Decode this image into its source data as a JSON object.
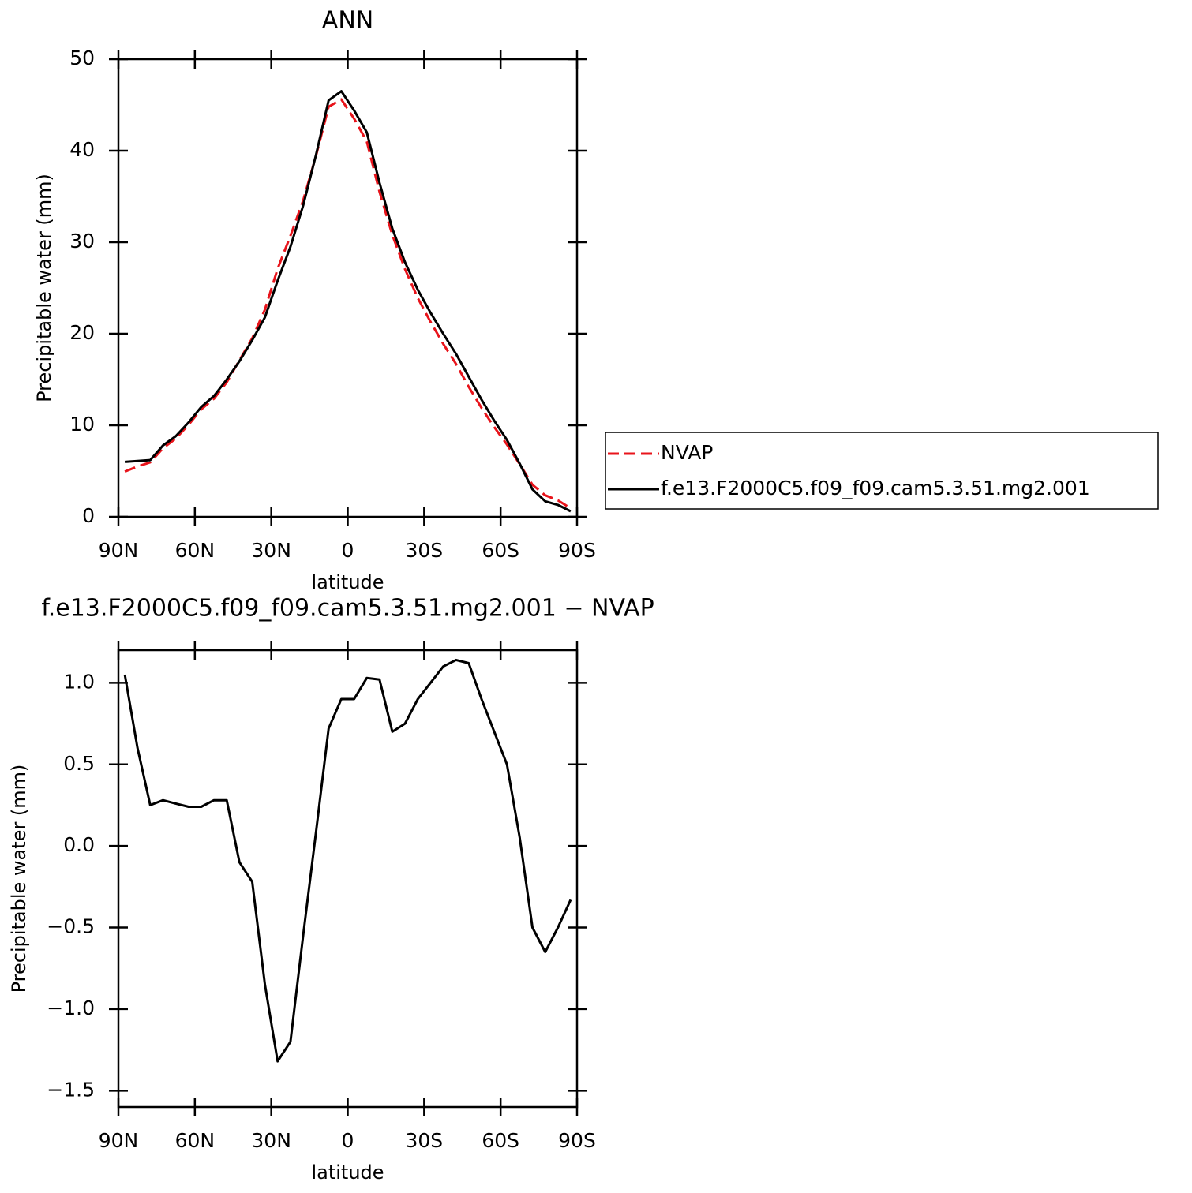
{
  "chart_data": [
    {
      "type": "line",
      "title": "ANN",
      "xlabel": "latitude",
      "ylabel": "Precipitable water (mm)",
      "x": [
        87.5,
        82.5,
        77.5,
        72.5,
        67.5,
        62.5,
        57.5,
        52.5,
        47.5,
        42.5,
        37.5,
        32.5,
        27.5,
        22.5,
        17.5,
        12.5,
        7.5,
        2.5,
        -2.5,
        -7.5,
        -12.5,
        -17.5,
        -22.5,
        -27.5,
        -32.5,
        -37.5,
        -42.5,
        -47.5,
        -52.5,
        -57.5,
        -62.5,
        -67.5,
        -72.5,
        -77.5,
        -82.5,
        -87.5
      ],
      "series": [
        {
          "name": "NVAP",
          "color": "#e8141b",
          "dash": "dashed",
          "values": [
            4.95,
            5.5,
            5.95,
            7.5,
            8.55,
            10.05,
            11.75,
            12.9,
            14.7,
            17.1,
            19.5,
            22.65,
            27.1,
            30.7,
            34.55,
            39.4,
            44.8,
            45.6,
            43.5,
            41.0,
            35.5,
            30.8,
            27.05,
            23.9,
            21.3,
            18.9,
            16.7,
            14.2,
            11.9,
            9.8,
            7.9,
            5.75,
            3.5,
            2.35,
            1.8,
            0.93
          ]
        },
        {
          "name": "f.e13.F2000C5.f09_f09.cam5.3.51.mg2.001",
          "color": "#000000",
          "dash": "solid",
          "values": [
            6.0,
            6.1,
            6.2,
            7.8,
            8.8,
            10.3,
            12.0,
            13.2,
            15.0,
            17.0,
            19.3,
            21.8,
            25.8,
            29.5,
            34.0,
            39.5,
            45.5,
            46.5,
            44.4,
            42.0,
            36.5,
            31.5,
            27.8,
            24.8,
            22.3,
            20.0,
            17.8,
            15.3,
            12.8,
            10.5,
            8.4,
            5.8,
            3.0,
            1.7,
            1.3,
            0.6
          ]
        }
      ],
      "xlim": [
        90,
        -90
      ],
      "xticks": [
        {
          "value": 90,
          "label": "90N"
        },
        {
          "value": 60,
          "label": "60N"
        },
        {
          "value": 30,
          "label": "30N"
        },
        0,
        {
          "value": -30,
          "label": "30S"
        },
        {
          "value": -60,
          "label": "60S"
        },
        {
          "value": -90,
          "label": "90S"
        }
      ],
      "ylim": [
        0,
        50
      ],
      "yticks": [
        0,
        10,
        20,
        30,
        40,
        50
      ],
      "legend": "outside-right"
    },
    {
      "type": "line",
      "title": "f.e13.F2000C5.f09_f09.cam5.3.51.mg2.001 − NVAP",
      "xlabel": "latitude",
      "ylabel": "Precipitable water (mm)",
      "x": [
        87.5,
        82.5,
        77.5,
        72.5,
        67.5,
        62.5,
        57.5,
        52.5,
        47.5,
        42.5,
        37.5,
        32.5,
        27.5,
        22.5,
        17.5,
        12.5,
        7.5,
        2.5,
        -2.5,
        -7.5,
        -12.5,
        -17.5,
        -22.5,
        -27.5,
        -32.5,
        -37.5,
        -42.5,
        -47.5,
        -52.5,
        -57.5,
        -62.5,
        -67.5,
        -72.5,
        -77.5,
        -82.5,
        -87.5
      ],
      "series": [
        {
          "color": "#000000",
          "dash": "solid",
          "values": [
            1.05,
            0.6,
            0.25,
            0.28,
            0.26,
            0.24,
            0.24,
            0.28,
            0.28,
            -0.1,
            -0.22,
            -0.85,
            -1.32,
            -1.2,
            -0.55,
            0.08,
            0.72,
            0.9,
            0.9,
            1.03,
            1.02,
            0.7,
            0.75,
            0.9,
            1.0,
            1.1,
            1.14,
            1.12,
            0.9,
            0.7,
            0.5,
            0.05,
            -0.5,
            -0.65,
            -0.5,
            -0.33
          ]
        }
      ],
      "xlim": [
        90,
        -90
      ],
      "xticks": [
        {
          "value": 90,
          "label": "90N"
        },
        {
          "value": 60,
          "label": "60N"
        },
        {
          "value": 30,
          "label": "30N"
        },
        0,
        {
          "value": -30,
          "label": "30S"
        },
        {
          "value": -60,
          "label": "60S"
        },
        {
          "value": -90,
          "label": "90S"
        }
      ],
      "ylim": [
        -1.6,
        1.2
      ],
      "yticks": [
        {
          "value": -1.5,
          "label": "−1.5"
        },
        {
          "value": -1.0,
          "label": "−1.0"
        },
        {
          "value": -0.5,
          "label": "−0.5"
        },
        {
          "value": 0,
          "label": "0.0"
        },
        {
          "value": 0.5,
          "label": "0.5"
        },
        {
          "value": 1.0,
          "label": "1.0"
        }
      ]
    }
  ]
}
